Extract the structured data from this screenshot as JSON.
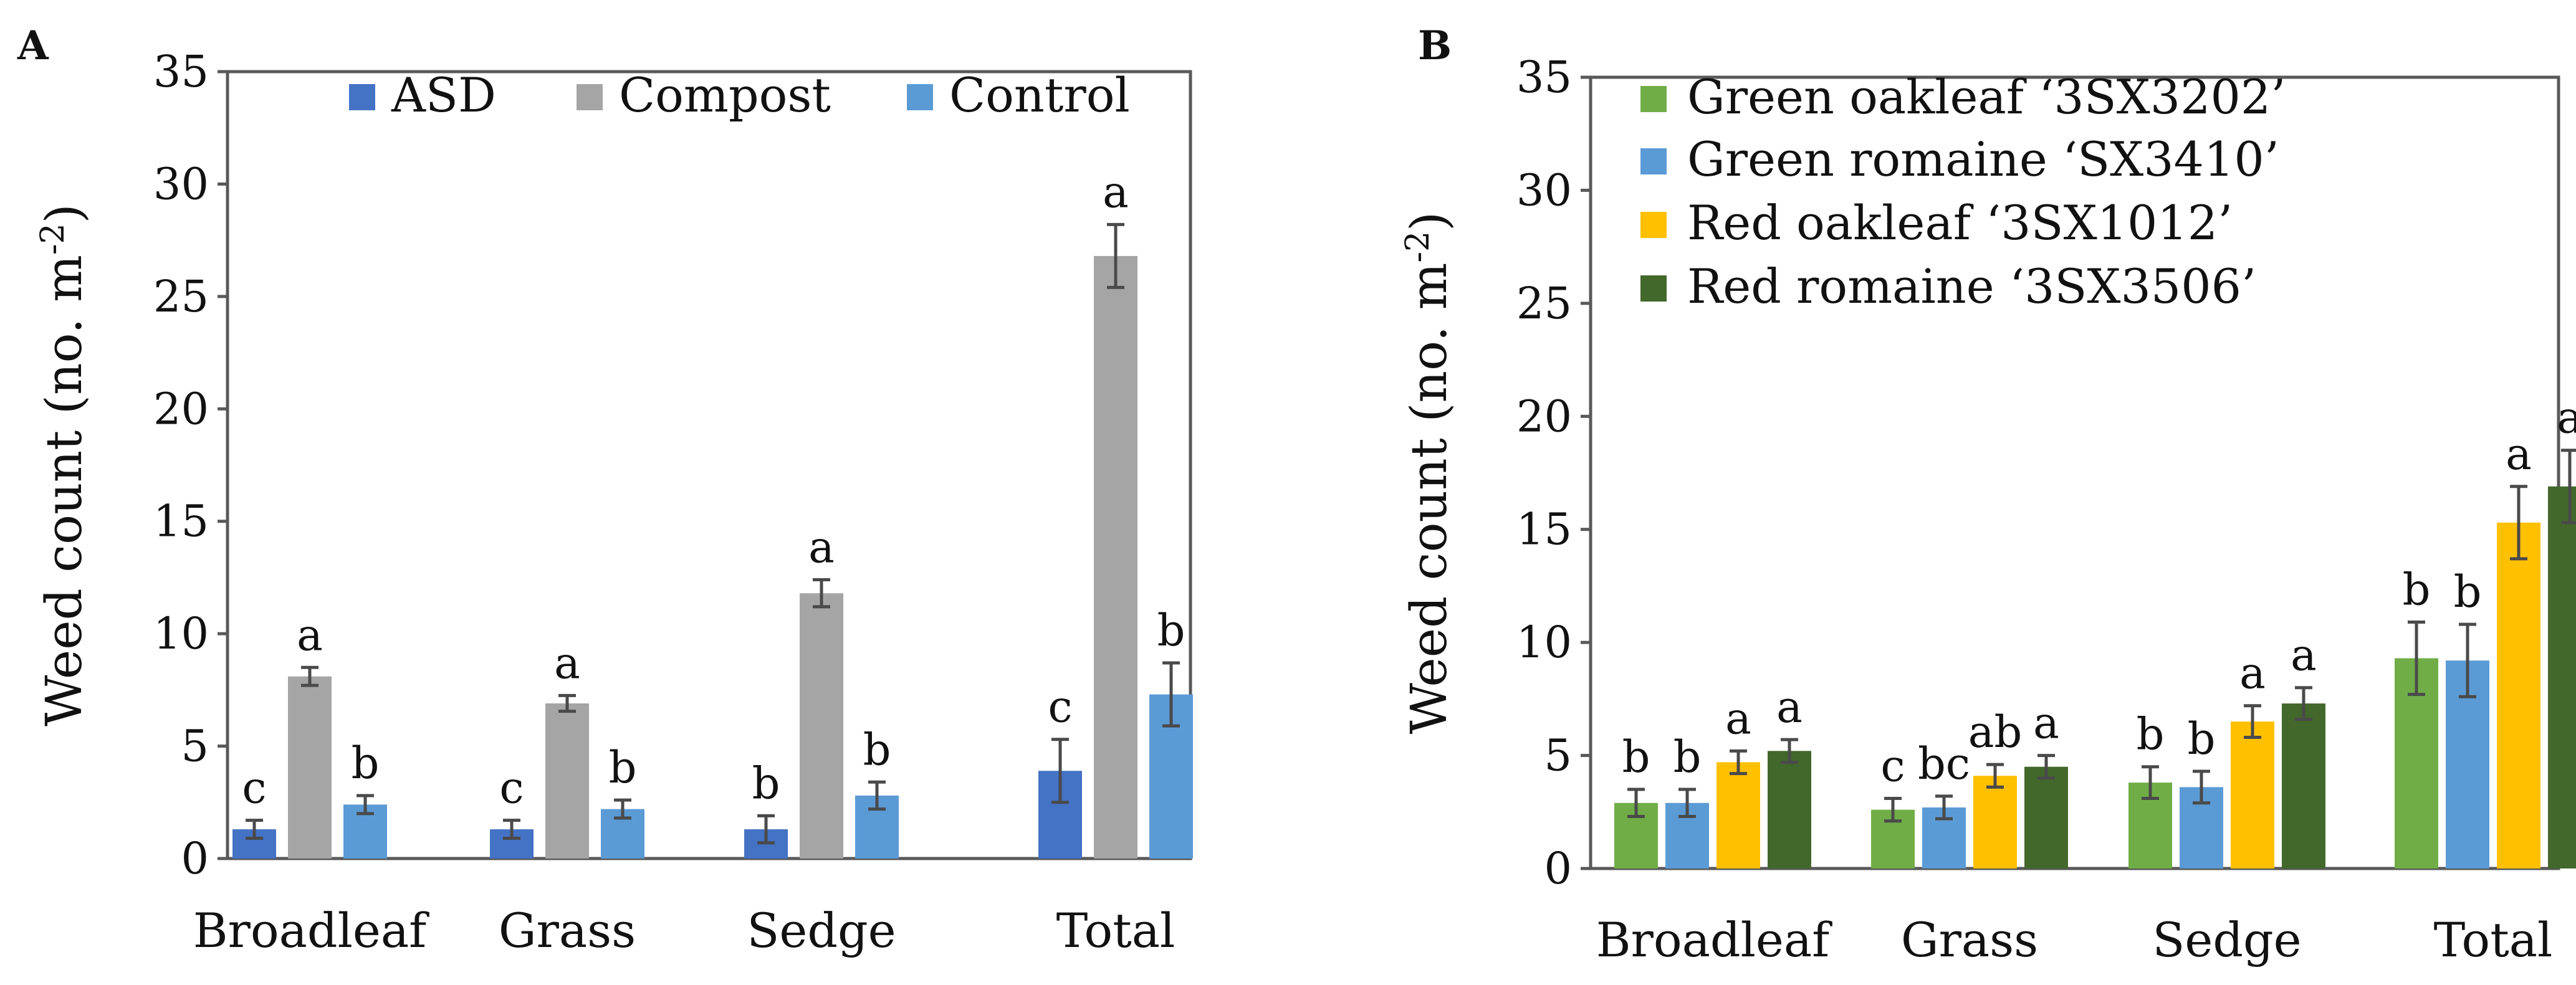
{
  "chart_data": [
    {
      "type": "bar",
      "panel_label": "A",
      "ylabel": "Weed count (no. m",
      "ylabel_sup": "-2",
      "ylabel_end": ")",
      "ylim": [
        0,
        35
      ],
      "yticks": [
        0,
        5,
        10,
        15,
        20,
        25,
        30,
        35
      ],
      "grid": false,
      "legend_position": "top",
      "categories": [
        "Broadleaf",
        "Grass",
        "Sedge",
        "Total"
      ],
      "series": [
        {
          "name": "ASD",
          "color": "#4472C4",
          "values": [
            1.3,
            1.3,
            1.3,
            3.9
          ],
          "errors": [
            0.4,
            0.4,
            0.6,
            1.4
          ],
          "letters": [
            "c",
            "c",
            "b",
            "c"
          ]
        },
        {
          "name": "Compost",
          "color": "#A5A5A5",
          "values": [
            8.1,
            6.9,
            11.8,
            26.8
          ],
          "errors": [
            0.4,
            0.35,
            0.6,
            1.4
          ],
          "letters": [
            "a",
            "a",
            "a",
            "a"
          ]
        },
        {
          "name": "Control",
          "color": "#5B9BD5",
          "values": [
            2.4,
            2.2,
            2.8,
            7.3
          ],
          "errors": [
            0.4,
            0.4,
            0.6,
            1.4
          ],
          "letters": [
            "b",
            "b",
            "b",
            "b"
          ]
        }
      ]
    },
    {
      "type": "bar",
      "panel_label": "B",
      "ylabel": "Weed count (no. m",
      "ylabel_sup": "-2",
      "ylabel_end": ")",
      "ylim": [
        0,
        35
      ],
      "yticks": [
        0,
        5,
        10,
        15,
        20,
        25,
        30,
        35
      ],
      "grid": false,
      "legend_position": "top-left",
      "categories": [
        "Broadleaf",
        "Grass",
        "Sedge",
        "Total"
      ],
      "series": [
        {
          "name": "Green oakleaf ‘3SX3202’",
          "color": "#70AD47",
          "values": [
            2.9,
            2.6,
            3.8,
            9.3
          ],
          "errors": [
            0.6,
            0.5,
            0.7,
            1.6
          ],
          "letters": [
            "b",
            "c",
            "b",
            "b"
          ]
        },
        {
          "name": "Green romaine ‘SX3410’",
          "color": "#5B9BD5",
          "values": [
            2.9,
            2.7,
            3.6,
            9.2
          ],
          "errors": [
            0.6,
            0.5,
            0.7,
            1.6
          ],
          "letters": [
            "b",
            "bc",
            "b",
            "b"
          ]
        },
        {
          "name": "Red oakleaf ‘3SX1012’",
          "color": "#FFC000",
          "values": [
            4.7,
            4.1,
            6.5,
            15.3
          ],
          "errors": [
            0.5,
            0.5,
            0.7,
            1.6
          ],
          "letters": [
            "a",
            "ab",
            "a",
            "a"
          ]
        },
        {
          "name": "Red romaine ‘3SX3506’",
          "color": "#43682B",
          "values": [
            5.2,
            4.5,
            7.3,
            16.9
          ],
          "errors": [
            0.5,
            0.5,
            0.7,
            1.6
          ],
          "letters": [
            "a",
            "a",
            "a",
            "a"
          ]
        }
      ]
    }
  ]
}
